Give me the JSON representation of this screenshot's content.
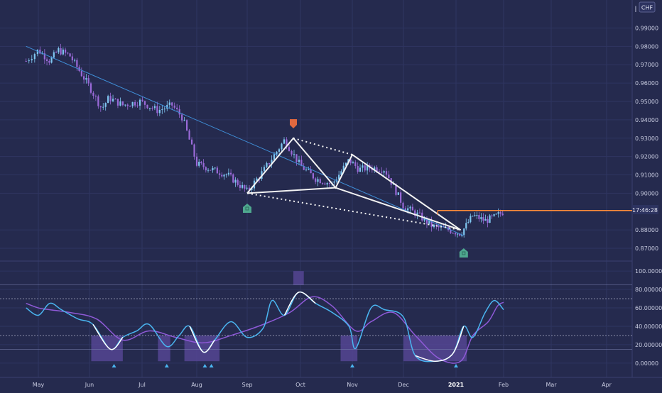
{
  "colors": {
    "background": "#252a4e",
    "grid": "#2f3561",
    "candle_up": "#7fc6f0",
    "candle_down": "#9a6ad8",
    "trendline": "#3f8fd8",
    "pattern": "#f2f2f2",
    "price_line": "#ff8c3a",
    "marker_down": "#e0683f",
    "marker_up": "#4fa88f",
    "osc_fast": "#4ab5f0",
    "osc_slow": "#8f5ad8",
    "osc_zone": "#5b4a9c",
    "axis_text": "#c8cbe0"
  },
  "header": {
    "currency": "CHF"
  },
  "price_label": "17:46:28",
  "chart_data": [
    {
      "type": "candlestick",
      "title": "",
      "currency": "CHF",
      "x_ticks": [
        "May",
        "Jun",
        "Jul",
        "Aug",
        "Sep",
        "Oct",
        "Nov",
        "Dec",
        "2021",
        "Feb",
        "Mar",
        "Apr"
      ],
      "y_ticks": [
        "0.99000",
        "0.98000",
        "0.97000",
        "0.96000",
        "0.95000",
        "0.94000",
        "0.93000",
        "0.92000",
        "0.91000",
        "0.90000",
        "0.88000",
        "0.87000"
      ],
      "ylim": [
        0.865,
        1.001
      ],
      "current_price_time": "17:46:28",
      "current_price": 0.8906,
      "price_path": [
        [
          "Apr 25",
          0.972
        ],
        [
          "May 1",
          0.978
        ],
        [
          "May 8",
          0.972
        ],
        [
          "May 13",
          0.978
        ],
        [
          "May 20",
          0.975
        ],
        [
          "Jun 1",
          0.958
        ],
        [
          "Jun 8",
          0.946
        ],
        [
          "Jun 12",
          0.952
        ],
        [
          "Jun 20",
          0.948
        ],
        [
          "Jun 30",
          0.95
        ],
        [
          "Jul 10",
          0.945
        ],
        [
          "Jul 18",
          0.948
        ],
        [
          "Jul 24",
          0.941
        ],
        [
          "Aug 1",
          0.916
        ],
        [
          "Aug 10",
          0.913
        ],
        [
          "Aug 20",
          0.91
        ],
        [
          "Sep 1",
          0.901
        ],
        [
          "Sep 10",
          0.912
        ],
        [
          "Sep 22",
          0.929
        ],
        [
          "Oct 1",
          0.915
        ],
        [
          "Oct 10",
          0.908
        ],
        [
          "Oct 20",
          0.905
        ],
        [
          "Oct 30",
          0.918
        ],
        [
          "Nov 5",
          0.913
        ],
        [
          "Nov 12",
          0.914
        ],
        [
          "Nov 20",
          0.913
        ],
        [
          "Dec 1",
          0.893
        ],
        [
          "Dec 10",
          0.888
        ],
        [
          "Dec 18",
          0.882
        ],
        [
          "Dec 28",
          0.88
        ],
        [
          "Jan 4",
          0.878
        ],
        [
          "Jan 12",
          0.888
        ],
        [
          "Jan 20",
          0.885
        ],
        [
          "Jan 26",
          0.887
        ],
        [
          "Feb 1",
          0.89
        ]
      ],
      "trendline": [
        [
          "Apr 25",
          0.98
        ],
        [
          "Jan 6",
          0.877
        ]
      ],
      "pattern_points": [
        [
          "Sep 1",
          0.9
        ],
        [
          "Sep 27",
          0.93
        ],
        [
          "Oct 22",
          0.903
        ],
        [
          "Nov 1",
          0.921
        ],
        [
          "Jan 4",
          0.88
        ]
      ],
      "markers": [
        {
          "date": "Sep 27",
          "position": "above",
          "kind": "down"
        },
        {
          "date": "Sep 1",
          "position": "below",
          "kind": "up"
        },
        {
          "date": "Jan 6",
          "position": "below",
          "kind": "up"
        }
      ]
    },
    {
      "type": "line",
      "title": "",
      "y_ticks": [
        "100.00000",
        "80.00000",
        "60.00000",
        "40.00000",
        "20.00000",
        "0.00000"
      ],
      "ylim": [
        -4,
        104
      ],
      "reference_levels": [
        85,
        70,
        30,
        15
      ],
      "series": [
        {
          "values": [
            [
              "Apr 25",
              60
            ],
            [
              "May 1",
              52
            ],
            [
              "May 8",
              65
            ],
            [
              "May 15",
              58
            ],
            [
              "May 25",
              48
            ],
            [
              "Jun 3",
              42
            ],
            [
              "Jun 13",
              15
            ],
            [
              "Jun 20",
              28
            ],
            [
              "Jun 28",
              35
            ],
            [
              "Jul 5",
              42
            ],
            [
              "Jul 15",
              18
            ],
            [
              "Jul 22",
              30
            ],
            [
              "Jul 28",
              40
            ],
            [
              "Aug 5",
              12
            ],
            [
              "Aug 12",
              25
            ],
            [
              "Aug 22",
              45
            ],
            [
              "Sep 1",
              28
            ],
            [
              "Sep 10",
              38
            ],
            [
              "Sep 15",
              68
            ],
            [
              "Sep 22",
              52
            ],
            [
              "Sep 30",
              77
            ],
            [
              "Oct 10",
              65
            ],
            [
              "Oct 20",
              55
            ],
            [
              "Oct 30",
              40
            ],
            [
              "Nov 3",
              16
            ],
            [
              "Nov 12",
              60
            ],
            [
              "Nov 20",
              58
            ],
            [
              "Dec 1",
              50
            ],
            [
              "Dec 8",
              8
            ],
            [
              "Dec 20",
              2
            ],
            [
              "Dec 30",
              10
            ],
            [
              "Jan 6",
              40
            ],
            [
              "Jan 12",
              28
            ],
            [
              "Jan 20",
              55
            ],
            [
              "Jan 26",
              68
            ],
            [
              "Feb 1",
              58
            ]
          ]
        },
        {
          "values": [
            [
              "Apr 25",
              65
            ],
            [
              "May 1",
              60
            ],
            [
              "May 8",
              58
            ],
            [
              "May 20",
              55
            ],
            [
              "Jun 5",
              48
            ],
            [
              "Jun 20",
              25
            ],
            [
              "Jul 5",
              35
            ],
            [
              "Jul 20",
              28
            ],
            [
              "Aug 5",
              22
            ],
            [
              "Aug 22",
              30
            ],
            [
              "Sep 10",
              42
            ],
            [
              "Sep 25",
              55
            ],
            [
              "Oct 8",
              72
            ],
            [
              "Oct 20",
              62
            ],
            [
              "Nov 3",
              35
            ],
            [
              "Nov 12",
              45
            ],
            [
              "Nov 25",
              55
            ],
            [
              "Dec 8",
              30
            ],
            [
              "Dec 22",
              5
            ],
            [
              "Jan 4",
              2
            ],
            [
              "Jan 12",
              30
            ],
            [
              "Jan 22",
              45
            ],
            [
              "Jan 28",
              62
            ],
            [
              "Feb 1",
              66
            ]
          ]
        }
      ],
      "zones": [
        [
          "Jun 2",
          "Jun 20",
          30,
          2
        ],
        [
          "Jul 10",
          "Jul 17",
          30,
          2
        ],
        [
          "Jul 25",
          "Aug 15",
          30,
          2
        ],
        [
          "Sep 27",
          "Oct 3",
          100,
          85
        ],
        [
          "Oct 25",
          "Nov 4",
          30,
          2
        ],
        [
          "Dec 1",
          "Jan 8",
          30,
          2
        ]
      ],
      "signals": [
        "Jun 15",
        "Jul 15",
        "Aug 6",
        "Aug 10",
        "Nov 1",
        "Jan 1"
      ]
    }
  ]
}
